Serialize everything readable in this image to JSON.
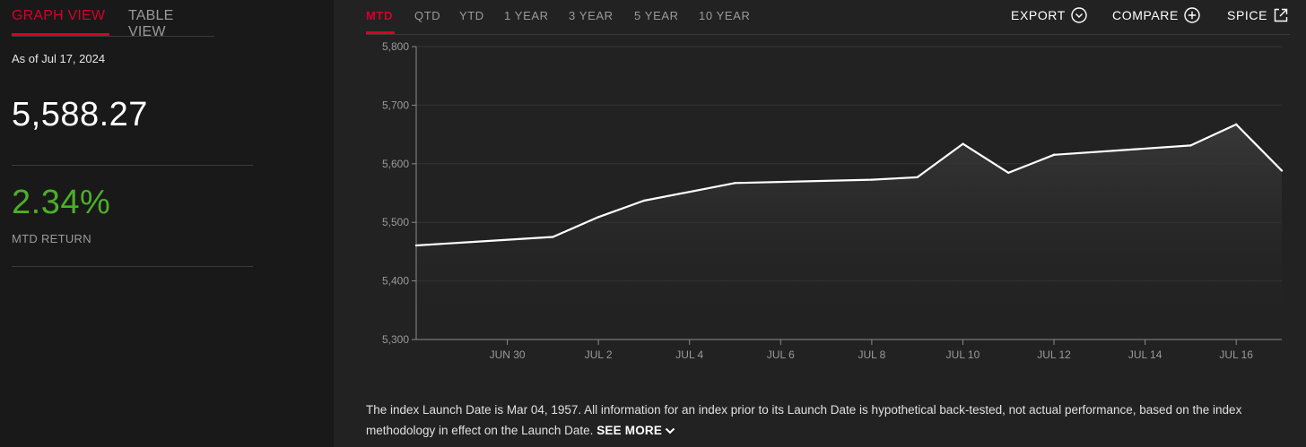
{
  "view_tabs": {
    "graph": "GRAPH VIEW",
    "table": "TABLE VIEW"
  },
  "summary": {
    "as_of": "As of Jul 17, 2024",
    "price": "5,588.27",
    "return_value": "2.34%",
    "return_label": "MTD RETURN"
  },
  "periods": [
    "MTD",
    "QTD",
    "YTD",
    "1 YEAR",
    "3 YEAR",
    "5 YEAR",
    "10 YEAR"
  ],
  "actions": {
    "export": "EXPORT",
    "compare": "COMPARE",
    "spice": "SPICE"
  },
  "icons": {
    "export": "chevron-down-circle-icon",
    "compare": "plus-circle-icon",
    "spice": "external-link-icon",
    "see_more": "chevron-down-icon"
  },
  "colors": {
    "accent": "#d6002a",
    "positive": "#4caf2a",
    "line": "#ffffff"
  },
  "disclaimer": {
    "text": "The index Launch Date is Mar 04, 1957. All information for an index prior to its Launch Date is hypothetical back-tested, not actual performance, based on the index methodology in effect on the Launch Date.",
    "see_more": "SEE MORE"
  },
  "chart_data": {
    "type": "area",
    "ylim": [
      5300,
      5800
    ],
    "yticks": [
      5300,
      5400,
      5500,
      5600,
      5700,
      5800
    ],
    "ytick_labels": [
      "5,300",
      "5,400",
      "5,500",
      "5,600",
      "5,700",
      "5,800"
    ],
    "xlim": [
      "2024-06-28",
      "2024-07-17"
    ],
    "xticks": [
      "2024-06-30",
      "2024-07-02",
      "2024-07-04",
      "2024-07-06",
      "2024-07-08",
      "2024-07-10",
      "2024-07-12",
      "2024-07-14",
      "2024-07-16"
    ],
    "xtick_labels": [
      "JUN 30",
      "JUL 2",
      "JUL 4",
      "JUL 6",
      "JUL 8",
      "JUL 10",
      "JUL 12",
      "JUL 14",
      "JUL 16"
    ],
    "grid": true,
    "x": [
      "2024-06-28",
      "2024-07-01",
      "2024-07-02",
      "2024-07-03",
      "2024-07-05",
      "2024-07-08",
      "2024-07-09",
      "2024-07-10",
      "2024-07-11",
      "2024-07-12",
      "2024-07-15",
      "2024-07-16",
      "2024-07-17"
    ],
    "y": [
      5460.48,
      5475.09,
      5509.01,
      5537.02,
      5567.19,
      5572.85,
      5576.98,
      5633.91,
      5584.54,
      5615.35,
      5631.22,
      5667.2,
      5588.27
    ]
  }
}
